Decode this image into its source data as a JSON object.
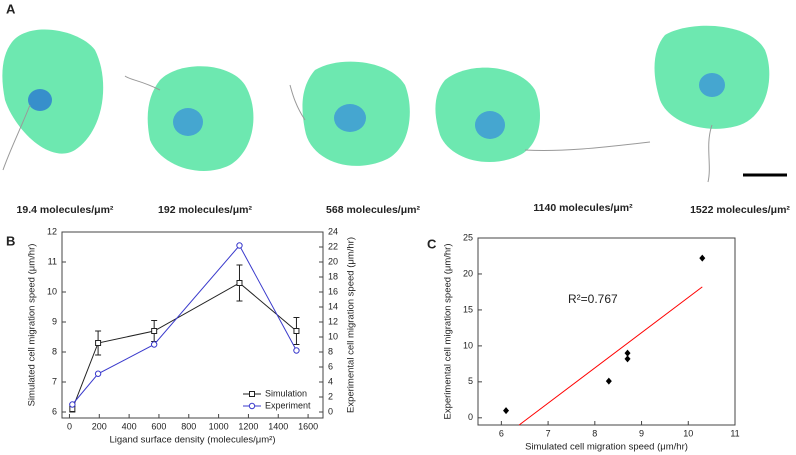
{
  "panel_a": {
    "label": "A",
    "cells": [
      {
        "label": "19.4 molecules/μm²"
      },
      {
        "label": "192 molecules/μm²"
      },
      {
        "label": "568 molecules/μm²"
      },
      {
        "label": "1140 molecules/μm²"
      },
      {
        "label": "1522 molecules/μm²"
      }
    ]
  },
  "chart_data": [
    {
      "type": "line",
      "panel_label": "B",
      "x_label": "Ligand surface density (molecules/μm²)",
      "y_label": "Simulated cell migration speed (μm/hr)",
      "y2_label": "Experimental cell migration speed (μm/hr)",
      "x": [
        19.4,
        192,
        568,
        1140,
        1522
      ],
      "xlim": [
        -50,
        1700
      ],
      "xticks": [
        0,
        200,
        400,
        600,
        800,
        1000,
        1200,
        1400,
        1600
      ],
      "ylim": [
        5.8,
        12
      ],
      "yticks": [
        6,
        7,
        8,
        9,
        10,
        11,
        12
      ],
      "y2lim": [
        -0.8,
        24
      ],
      "y2ticks": [
        0,
        2,
        4,
        6,
        8,
        10,
        12,
        14,
        16,
        18,
        20,
        22,
        24
      ],
      "legend": "lower right",
      "series": [
        {
          "name": "Simulation",
          "color": "#222222",
          "marker": "square",
          "values": [
            6.1,
            8.3,
            8.7,
            10.3,
            8.7
          ],
          "errors": [
            0.1,
            0.4,
            0.35,
            0.6,
            0.45
          ]
        },
        {
          "name": "Experiment",
          "color": "#3a3acc",
          "marker": "circle",
          "axis": "y2",
          "values": [
            1.0,
            5.1,
            9.0,
            22.2,
            8.2
          ]
        }
      ]
    },
    {
      "type": "scatter",
      "panel_label": "C",
      "x_label": "Simulated cell migration speed (μm/hr)",
      "y_label": "Experimental cell migration speed (μm/hr)",
      "annotation": "R²=0.767",
      "xlim": [
        5.5,
        11
      ],
      "xticks": [
        6,
        7,
        8,
        9,
        10,
        11
      ],
      "ylim": [
        -1,
        25
      ],
      "yticks": [
        0,
        5,
        10,
        15,
        20,
        25
      ],
      "points": {
        "color": "#000000",
        "x": [
          6.1,
          8.3,
          8.7,
          8.7,
          10.3
        ],
        "y": [
          1.0,
          5.1,
          8.2,
          9.0,
          22.2
        ]
      },
      "fit_line": {
        "color": "#ff0000",
        "x": [
          6.38,
          10.3
        ],
        "y": [
          -1,
          18.2
        ]
      }
    }
  ]
}
